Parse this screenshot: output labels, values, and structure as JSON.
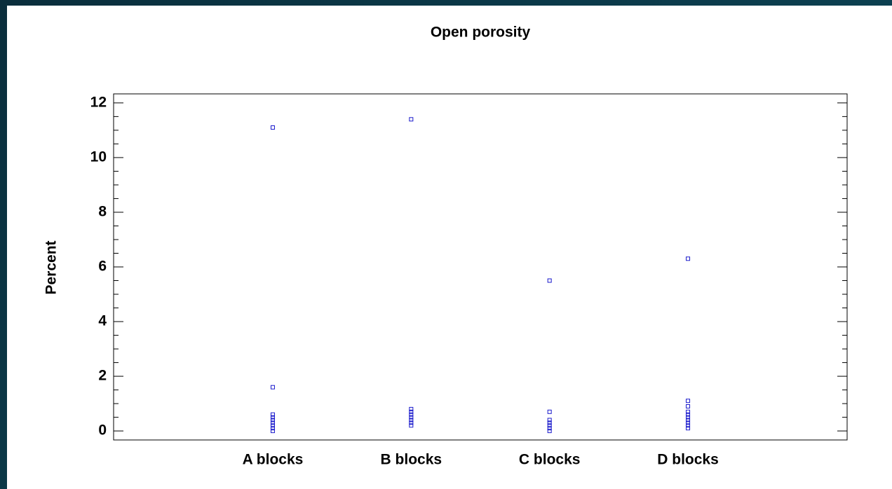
{
  "chart_data": {
    "type": "strip",
    "title": "Open porosity",
    "y_label": "Percent",
    "categories": [
      "A blocks",
      "B blocks",
      "C blocks",
      "D blocks"
    ],
    "values": [
      [
        11.1,
        1.6,
        0.6,
        0.5,
        0.4,
        0.3,
        0.2,
        0.1,
        0.0
      ],
      [
        11.4,
        0.8,
        0.7,
        0.6,
        0.5,
        0.4,
        0.3,
        0.2
      ],
      [
        5.5,
        0.7,
        0.4,
        0.3,
        0.2,
        0.1,
        0.0
      ],
      [
        6.3,
        1.1,
        0.9,
        0.7,
        0.6,
        0.5,
        0.4,
        0.3,
        0.2,
        0.1
      ]
    ],
    "color": "#1a1acc",
    "ylim": [
      -0.33,
      12.33
    ],
    "yticks": [
      0,
      2,
      4,
      6,
      8,
      10,
      12
    ],
    "minor_yticks": [
      0.5,
      1,
      1.5,
      2.5,
      3,
      3.5,
      4.5,
      5,
      5.5,
      6.5,
      7,
      7.5,
      8.5,
      9,
      9.5,
      10.5,
      11,
      11.5
    ],
    "grid": false
  }
}
